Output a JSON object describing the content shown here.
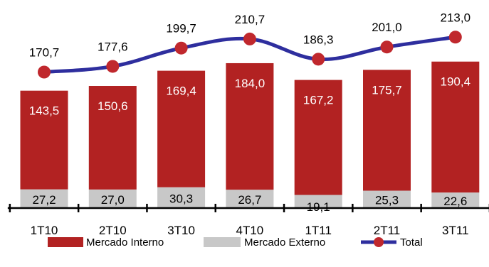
{
  "chart_data": {
    "type": "bar",
    "stacked": true,
    "categories": [
      "1T10",
      "2T10",
      "3T10",
      "4T10",
      "1T11",
      "2T11",
      "3T11"
    ],
    "series": [
      {
        "name": "Mercado Externo",
        "kind": "bar",
        "color": "#c8c8c8",
        "values": [
          27.2,
          27.0,
          30.3,
          26.7,
          19.1,
          25.3,
          22.6
        ],
        "labels": [
          "27,2",
          "27,0",
          "30,3",
          "26,7",
          "19,1",
          "25,3",
          "22,6"
        ]
      },
      {
        "name": "Mercado Interno",
        "kind": "bar",
        "color": "#b22222",
        "values": [
          143.5,
          150.6,
          169.4,
          184.0,
          167.2,
          175.7,
          190.4
        ],
        "labels": [
          "143,5",
          "150,6",
          "169,4",
          "184,0",
          "167,2",
          "175,7",
          "190,4"
        ]
      },
      {
        "name": "Total",
        "kind": "line",
        "color": "#2e2e9e",
        "marker_color": "#c0282d",
        "values": [
          170.7,
          177.6,
          199.7,
          210.7,
          186.3,
          201.0,
          213.0
        ],
        "labels": [
          "170,7",
          "177,6",
          "199,7",
          "210,7",
          "186,3",
          "201,0",
          "213,0"
        ]
      }
    ],
    "legend": [
      "Mercado Interno",
      "Mercado Externo",
      "Total"
    ],
    "legend_position": "bottom",
    "grid": false
  }
}
